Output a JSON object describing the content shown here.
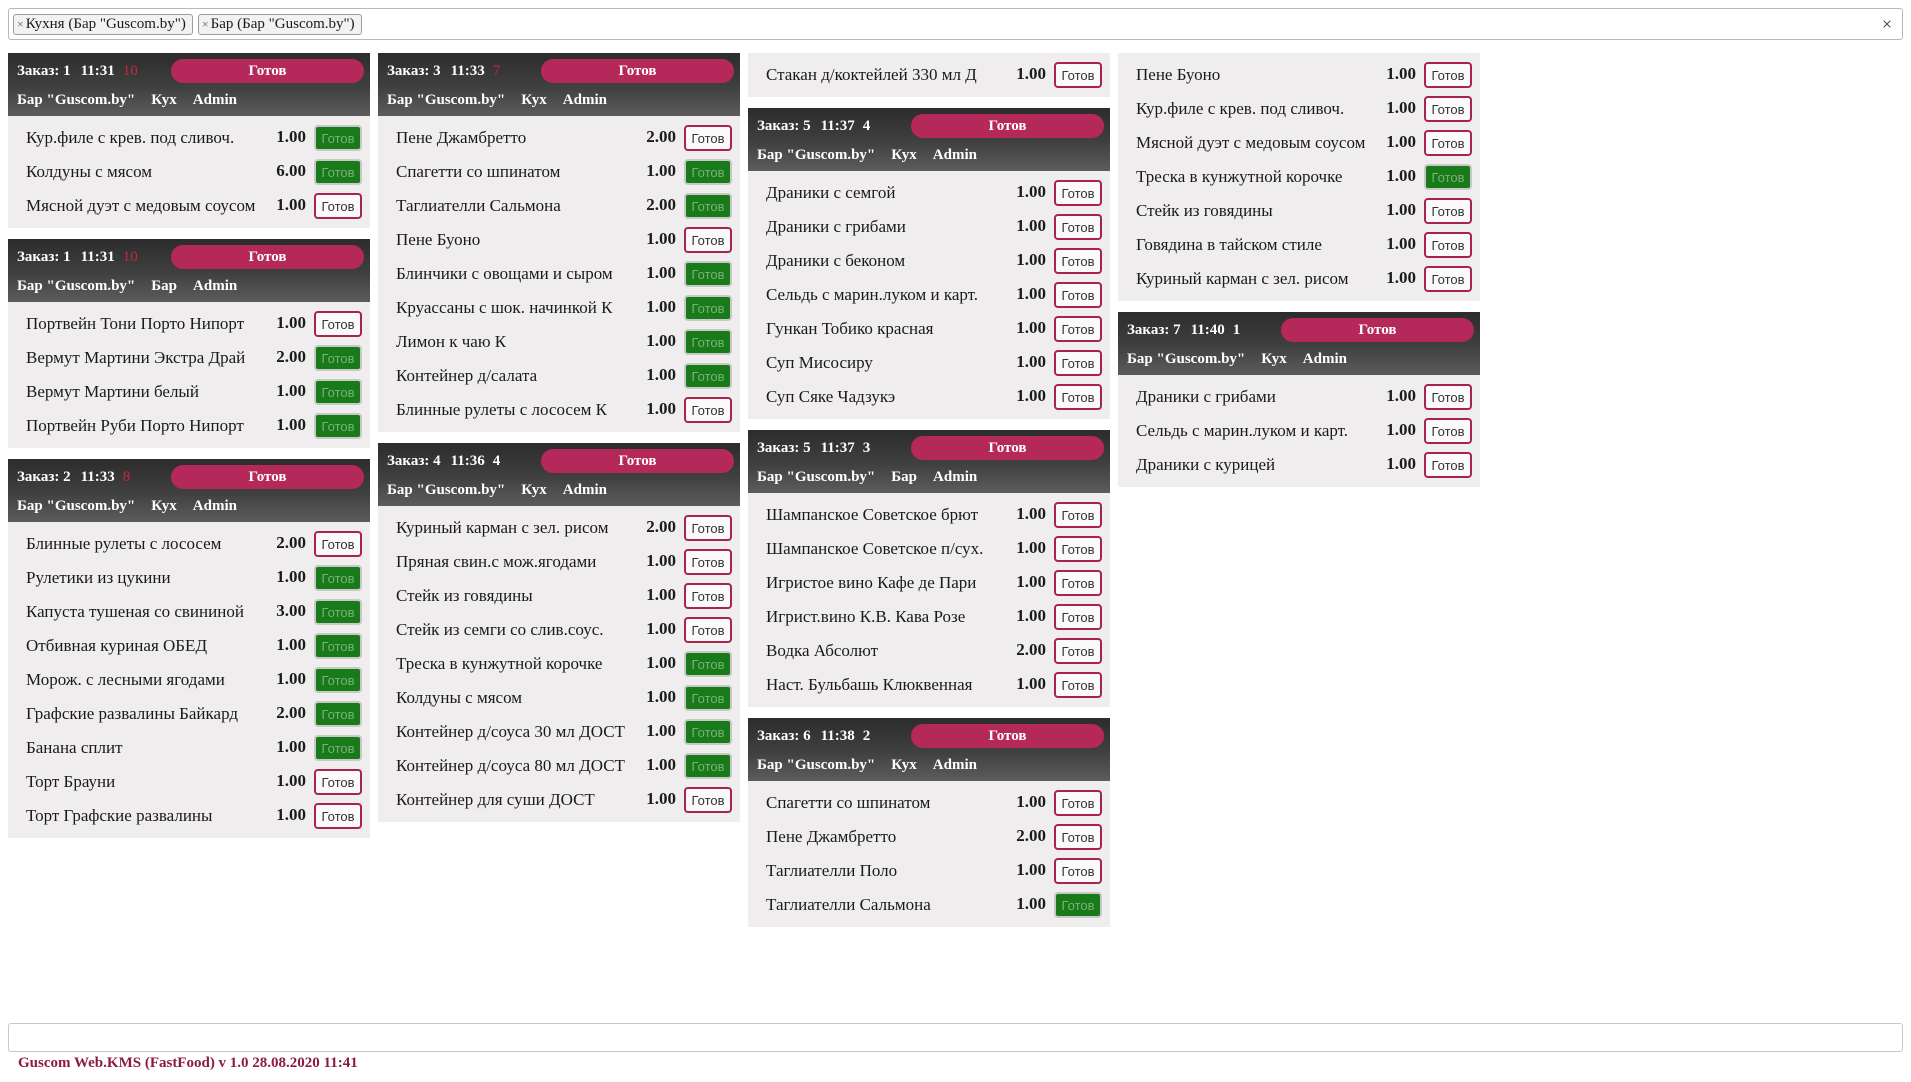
{
  "filters": [
    {
      "label": "Кухня (Бар \"Guscom.by\")",
      "remove": "×"
    },
    {
      "label": "Бар (Бар \"Guscom.by\")",
      "remove": "×"
    }
  ],
  "clear_all": "×",
  "ready_label": "Готов",
  "done_color": "#187a18",
  "accent_color": "#b5285a",
  "columns": [
    [
      {
        "number": "Заказ: 1",
        "time": "11:31",
        "elapsed": "10",
        "late": true,
        "place": "Бар \"Guscom.by\"",
        "station": "Кух",
        "user": "Admin",
        "items": [
          {
            "name": "Кур.филе с крев. под сливоч.",
            "qty": "1.00",
            "done": true
          },
          {
            "name": "Колдуны с мясом",
            "qty": "6.00",
            "done": true
          },
          {
            "name": "Мясной дуэт с медовым соусом",
            "qty": "1.00",
            "done": false
          }
        ]
      },
      {
        "number": "Заказ: 1",
        "time": "11:31",
        "elapsed": "10",
        "late": true,
        "place": "Бар \"Guscom.by\"",
        "station": "Бар",
        "user": "Admin",
        "items": [
          {
            "name": "Портвейн Тони Порто Нипорт",
            "qty": "1.00",
            "done": false
          },
          {
            "name": "Вермут Мартини Экстра Драй",
            "qty": "2.00",
            "done": true
          },
          {
            "name": "Вермут Мартини белый",
            "qty": "1.00",
            "done": true
          },
          {
            "name": "Портвейн Руби Порто Нипорт",
            "qty": "1.00",
            "done": true
          }
        ]
      },
      {
        "number": "Заказ: 2",
        "time": "11:33",
        "elapsed": "8",
        "late": true,
        "place": "Бар \"Guscom.by\"",
        "station": "Кух",
        "user": "Admin",
        "items": [
          {
            "name": "Блинные рулеты с лососем",
            "qty": "2.00",
            "done": false
          },
          {
            "name": "Рулетики из цукини",
            "qty": "1.00",
            "done": true
          },
          {
            "name": "Капуста тушеная со свининой",
            "qty": "3.00",
            "done": true
          },
          {
            "name": "Отбивная куриная ОБЕД",
            "qty": "1.00",
            "done": true
          },
          {
            "name": "Морож. с лесными ягодами",
            "qty": "1.00",
            "done": true
          },
          {
            "name": "Графские развалины Байкард",
            "qty": "2.00",
            "done": true
          },
          {
            "name": "Банана сплит",
            "qty": "1.00",
            "done": true
          },
          {
            "name": "Торт Брауни",
            "qty": "1.00",
            "done": false
          },
          {
            "name": "Торт Графские развалины",
            "qty": "1.00",
            "done": false
          }
        ]
      }
    ],
    [
      {
        "number": "Заказ: 3",
        "time": "11:33",
        "elapsed": "7",
        "late": true,
        "place": "Бар \"Guscom.by\"",
        "station": "Кух",
        "user": "Admin",
        "items": [
          {
            "name": "Пене Джамбретто",
            "qty": "2.00",
            "done": false
          },
          {
            "name": "Спагетти со шпинатом",
            "qty": "1.00",
            "done": true
          },
          {
            "name": "Таглиателли Сальмона",
            "qty": "2.00",
            "done": true
          },
          {
            "name": "Пене Буоно",
            "qty": "1.00",
            "done": false
          },
          {
            "name": "Блинчики с овощами и сыром",
            "qty": "1.00",
            "done": true
          },
          {
            "name": "Круассаны с шок. начинкой К",
            "qty": "1.00",
            "done": true
          },
          {
            "name": "Лимон к чаю К",
            "qty": "1.00",
            "done": true
          },
          {
            "name": "Контейнер д/салата",
            "qty": "1.00",
            "done": true
          },
          {
            "name": "Блинные рулеты с лососем К",
            "qty": "1.00",
            "done": false
          }
        ]
      },
      {
        "number": "Заказ: 4",
        "time": "11:36",
        "elapsed": "4",
        "late": false,
        "place": "Бар \"Guscom.by\"",
        "station": "Кух",
        "user": "Admin",
        "items": [
          {
            "name": "Куриный карман с зел. рисом",
            "qty": "2.00",
            "done": false
          },
          {
            "name": "Пряная свин.с мож.ягодами",
            "qty": "1.00",
            "done": false
          },
          {
            "name": "Стейк из говядины",
            "qty": "1.00",
            "done": false
          },
          {
            "name": "Стейк из семги со слив.соус.",
            "qty": "1.00",
            "done": false
          },
          {
            "name": "Треска в кунжутной корочке",
            "qty": "1.00",
            "done": true
          },
          {
            "name": "Колдуны с мясом",
            "qty": "1.00",
            "done": true
          },
          {
            "name": "Контейнер д/соуса 30 мл ДОСТ",
            "qty": "1.00",
            "done": true
          },
          {
            "name": "Контейнер д/соуса 80 мл ДОСТ",
            "qty": "1.00",
            "done": true
          },
          {
            "name": "Контейнер для суши ДОСТ",
            "qty": "1.00",
            "done": false
          }
        ]
      }
    ],
    [
      {
        "continuation": true,
        "items": [
          {
            "name": "Стакан д/коктейлей 330 мл Д",
            "qty": "1.00",
            "done": false
          }
        ]
      },
      {
        "number": "Заказ: 5",
        "time": "11:37",
        "elapsed": "4",
        "late": false,
        "place": "Бар \"Guscom.by\"",
        "station": "Кух",
        "user": "Admin",
        "items": [
          {
            "name": "Драники с семгой",
            "qty": "1.00",
            "done": false
          },
          {
            "name": "Драники с грибами",
            "qty": "1.00",
            "done": false
          },
          {
            "name": "Драники с беконом",
            "qty": "1.00",
            "done": false
          },
          {
            "name": "Сельдь с марин.луком и карт.",
            "qty": "1.00",
            "done": false
          },
          {
            "name": "Гункан Тобико красная",
            "qty": "1.00",
            "done": false
          },
          {
            "name": "Суп Мисосиру",
            "qty": "1.00",
            "done": false
          },
          {
            "name": "Суп Сяке Чадзукэ",
            "qty": "1.00",
            "done": false
          }
        ]
      },
      {
        "number": "Заказ: 5",
        "time": "11:37",
        "elapsed": "3",
        "late": false,
        "place": "Бар \"Guscom.by\"",
        "station": "Бар",
        "user": "Admin",
        "items": [
          {
            "name": "Шампанское Советское брют",
            "qty": "1.00",
            "done": false
          },
          {
            "name": "Шампанское Советское п/сух.",
            "qty": "1.00",
            "done": false
          },
          {
            "name": "Игристое вино Кафе де Пари",
            "qty": "1.00",
            "done": false
          },
          {
            "name": "Игрист.вино К.В. Кава Розе",
            "qty": "1.00",
            "done": false
          },
          {
            "name": "Водка Абсолют",
            "qty": "2.00",
            "done": false
          },
          {
            "name": "Наст. Бульбашь Клюквенная",
            "qty": "1.00",
            "done": false
          }
        ]
      },
      {
        "number": "Заказ: 6",
        "time": "11:38",
        "elapsed": "2",
        "late": false,
        "place": "Бар \"Guscom.by\"",
        "station": "Кух",
        "user": "Admin",
        "items": [
          {
            "name": "Спагетти со шпинатом",
            "qty": "1.00",
            "done": false
          },
          {
            "name": "Пене Джамбретто",
            "qty": "2.00",
            "done": false
          },
          {
            "name": "Таглиателли Поло",
            "qty": "1.00",
            "done": false
          },
          {
            "name": "Таглиателли Сальмона",
            "qty": "1.00",
            "done": true
          }
        ]
      }
    ],
    [
      {
        "continuation": true,
        "items": [
          {
            "name": "Пене Буоно",
            "qty": "1.00",
            "done": false
          },
          {
            "name": "Кур.филе с крев. под сливоч.",
            "qty": "1.00",
            "done": false
          },
          {
            "name": "Мясной дуэт с медовым соусом",
            "qty": "1.00",
            "done": false
          },
          {
            "name": "Треска в кунжутной корочке",
            "qty": "1.00",
            "done": true
          },
          {
            "name": "Стейк из говядины",
            "qty": "1.00",
            "done": false
          },
          {
            "name": "Говядина в тайском стиле",
            "qty": "1.00",
            "done": false
          },
          {
            "name": "Куриный карман с зел. рисом",
            "qty": "1.00",
            "done": false
          }
        ]
      },
      {
        "number": "Заказ: 7",
        "time": "11:40",
        "elapsed": "1",
        "late": false,
        "place": "Бар \"Guscom.by\"",
        "station": "Кух",
        "user": "Admin",
        "items": [
          {
            "name": "Драники с грибами",
            "qty": "1.00",
            "done": false
          },
          {
            "name": "Сельдь с марин.луком и карт.",
            "qty": "1.00",
            "done": false
          },
          {
            "name": "Драники с курицей",
            "qty": "1.00",
            "done": false
          }
        ]
      }
    ]
  ],
  "footer": "Guscom Web.KMS (FastFood) v 1.0  28.08.2020 11:41"
}
